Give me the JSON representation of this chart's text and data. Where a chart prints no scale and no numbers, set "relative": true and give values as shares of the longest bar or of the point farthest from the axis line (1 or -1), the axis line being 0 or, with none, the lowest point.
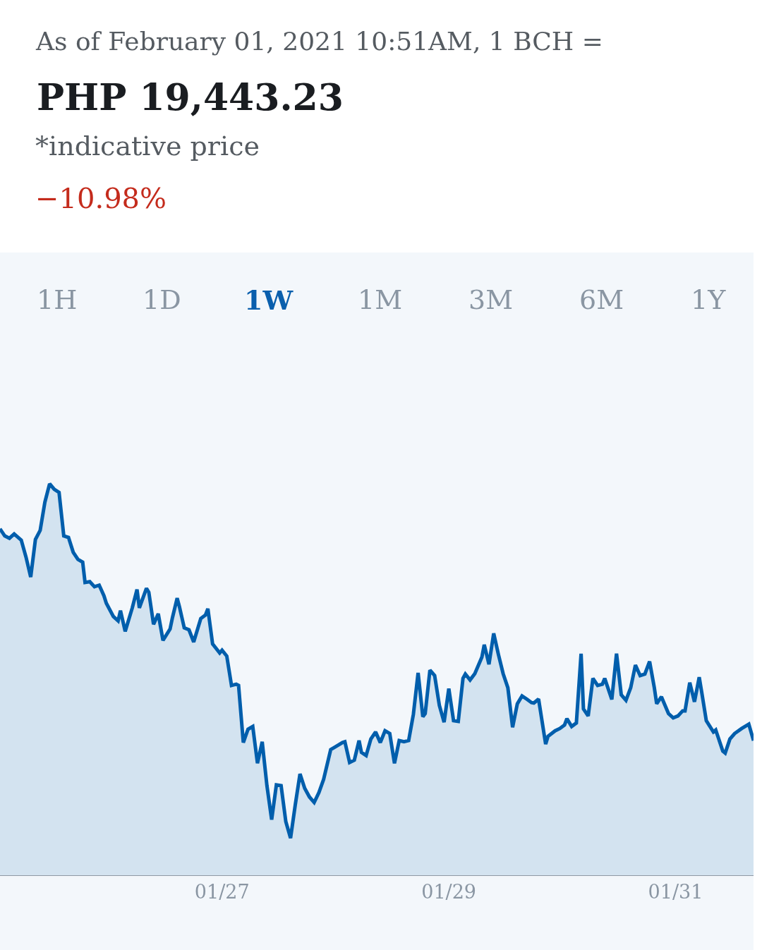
{
  "chart_data": {
    "type": "area",
    "subtitle": "As of February 01, 2021 10:51AM, 1 BCH =",
    "title": "PHP 19,443.23",
    "annotations": [
      "*indicative price",
      "−10.98%",
      "1H",
      "1D",
      "1W",
      "1M",
      "3M",
      "6M",
      "1Y"
    ],
    "relative": true,
    "color": "#005eac",
    "xlim": [
      "2021-01-25T01:00",
      "2021-01-31T16:30"
    ],
    "xticks": [
      {
        "value": "2021-01-27",
        "label": "01/27"
      },
      {
        "value": "2021-01-29",
        "label": "01/29"
      },
      {
        "value": "2021-01-31",
        "label": "01/31"
      }
    ],
    "x": [
      "2021-01-25T01:00",
      "2021-01-25T02:00",
      "2021-01-25T03:00",
      "2021-01-25T04:00",
      "2021-01-25T05:30",
      "2021-01-25T06:30",
      "2021-01-25T07:30",
      "2021-01-25T08:30",
      "2021-01-25T09:30",
      "2021-01-25T10:30",
      "2021-01-25T11:30",
      "2021-01-25T12:30",
      "2021-01-25T13:30",
      "2021-01-25T14:30",
      "2021-01-25T15:30",
      "2021-01-25T16:30",
      "2021-01-25T17:30",
      "2021-01-25T18:30",
      "2021-01-25T19:00",
      "2021-01-25T20:00",
      "2021-01-25T21:00",
      "2021-01-25T22:00",
      "2021-01-25T23:00",
      "2021-01-25T23:30",
      "2021-01-26T01:00",
      "2021-01-26T02:00",
      "2021-01-26T02:30",
      "2021-01-26T03:30",
      "2021-01-26T05:00",
      "2021-01-26T06:00",
      "2021-01-26T06:30",
      "2021-01-26T08:00",
      "2021-01-26T08:30",
      "2021-01-26T09:30",
      "2021-01-26T10:30",
      "2021-01-26T11:30",
      "2021-01-26T13:00",
      "2021-01-26T13:30",
      "2021-01-26T14:30",
      "2021-01-26T15:00",
      "2021-01-26T16:00",
      "2021-01-26T17:00",
      "2021-01-26T18:00",
      "2021-01-26T19:30",
      "2021-01-26T20:30",
      "2021-01-26T21:00",
      "2021-01-26T22:00",
      "2021-01-26T23:30",
      "2021-01-27T00:00",
      "2021-01-27T01:00",
      "2021-01-27T02:00",
      "2021-01-27T03:00",
      "2021-01-27T03:30",
      "2021-01-27T04:30",
      "2021-01-27T05:30",
      "2021-01-27T06:30",
      "2021-01-27T07:30",
      "2021-01-27T08:30",
      "2021-01-27T09:30",
      "2021-01-27T10:30",
      "2021-01-27T11:30",
      "2021-01-27T12:30",
      "2021-01-27T13:30",
      "2021-01-27T14:30",
      "2021-01-27T15:30",
      "2021-01-27T16:30",
      "2021-01-27T17:30",
      "2021-01-27T18:30",
      "2021-01-27T19:30",
      "2021-01-27T20:30",
      "2021-01-27T21:30",
      "2021-01-27T23:00",
      "2021-01-28T00:00",
      "2021-01-28T01:30",
      "2021-01-28T02:00",
      "2021-01-28T03:00",
      "2021-01-28T04:00",
      "2021-01-28T05:00",
      "2021-01-28T05:30",
      "2021-01-28T06:30",
      "2021-01-28T07:30",
      "2021-01-28T08:30",
      "2021-01-28T09:30",
      "2021-01-28T10:30",
      "2021-01-28T11:30",
      "2021-01-28T12:30",
      "2021-01-28T13:30",
      "2021-01-28T14:30",
      "2021-01-28T15:30",
      "2021-01-28T16:30",
      "2021-01-28T17:30",
      "2021-01-28T18:30",
      "2021-01-28T19:00",
      "2021-01-28T20:00",
      "2021-01-28T21:00",
      "2021-01-28T22:00",
      "2021-01-28T23:00",
      "2021-01-29T00:00",
      "2021-01-29T01:00",
      "2021-01-29T02:00",
      "2021-01-29T03:00",
      "2021-01-29T03:30",
      "2021-01-29T04:30",
      "2021-01-29T05:30",
      "2021-01-29T07:00",
      "2021-01-29T07:30",
      "2021-01-29T08:30",
      "2021-01-29T09:30",
      "2021-01-29T10:30",
      "2021-01-29T11:30",
      "2021-01-29T12:30",
      "2021-01-29T13:30",
      "2021-01-29T14:30",
      "2021-01-29T15:30",
      "2021-01-29T16:30",
      "2021-01-29T17:30",
      "2021-01-29T18:00",
      "2021-01-29T19:00",
      "2021-01-29T20:30",
      "2021-01-29T21:00",
      "2021-01-29T22:30",
      "2021-01-29T23:30",
      "2021-01-30T00:30",
      "2021-01-30T01:00",
      "2021-01-30T02:00",
      "2021-01-30T03:00",
      "2021-01-30T04:00",
      "2021-01-30T04:30",
      "2021-01-30T05:30",
      "2021-01-30T06:30",
      "2021-01-30T07:30",
      "2021-01-30T08:30",
      "2021-01-30T09:00",
      "2021-01-30T10:30",
      "2021-01-30T11:30",
      "2021-01-30T12:30",
      "2021-01-30T13:30",
      "2021-01-30T14:30",
      "2021-01-30T15:30",
      "2021-01-30T16:30",
      "2021-01-30T17:30",
      "2021-01-30T18:30",
      "2021-01-30T19:30",
      "2021-01-30T20:00",
      "2021-01-30T21:00",
      "2021-01-30T22:30",
      "2021-01-30T23:30",
      "2021-01-31T00:30",
      "2021-01-31T01:30",
      "2021-01-31T02:00",
      "2021-01-31T03:00",
      "2021-01-31T04:00",
      "2021-01-31T05:00",
      "2021-01-31T05:30",
      "2021-01-31T06:30",
      "2021-01-31T08:00",
      "2021-01-31T08:30",
      "2021-01-31T10:00",
      "2021-01-31T10:30",
      "2021-01-31T11:30",
      "2021-01-31T12:30",
      "2021-01-31T14:00",
      "2021-01-31T15:30",
      "2021-01-31T16:30"
    ],
    "values": [
      0.885,
      0.867,
      0.861,
      0.872,
      0.856,
      0.813,
      0.762,
      0.858,
      0.881,
      0.953,
      1.0,
      0.986,
      0.978,
      0.867,
      0.863,
      0.825,
      0.807,
      0.8,
      0.748,
      0.75,
      0.737,
      0.741,
      0.714,
      0.695,
      0.661,
      0.65,
      0.676,
      0.623,
      0.683,
      0.73,
      0.683,
      0.733,
      0.723,
      0.641,
      0.668,
      0.6,
      0.629,
      0.658,
      0.708,
      0.685,
      0.632,
      0.627,
      0.596,
      0.656,
      0.665,
      0.681,
      0.591,
      0.568,
      0.575,
      0.56,
      0.485,
      0.488,
      0.485,
      0.339,
      0.373,
      0.38,
      0.286,
      0.341,
      0.229,
      0.142,
      0.231,
      0.229,
      0.137,
      0.095,
      0.18,
      0.259,
      0.222,
      0.2,
      0.186,
      0.211,
      0.245,
      0.321,
      0.328,
      0.339,
      0.341,
      0.288,
      0.294,
      0.344,
      0.314,
      0.306,
      0.348,
      0.366,
      0.339,
      0.369,
      0.362,
      0.286,
      0.344,
      0.341,
      0.344,
      0.411,
      0.517,
      0.405,
      0.413,
      0.524,
      0.51,
      0.434,
      0.391,
      0.477,
      0.395,
      0.393,
      0.503,
      0.514,
      0.499,
      0.515,
      0.557,
      0.589,
      0.539,
      0.618,
      0.564,
      0.515,
      0.479,
      0.378,
      0.438,
      0.458,
      0.45,
      0.441,
      0.44,
      0.45,
      0.335,
      0.355,
      0.369,
      0.375,
      0.384,
      0.4,
      0.38,
      0.389,
      0.566,
      0.425,
      0.407,
      0.503,
      0.485,
      0.488,
      0.503,
      0.449,
      0.566,
      0.461,
      0.447,
      0.479,
      0.537,
      0.51,
      0.514,
      0.546,
      0.479,
      0.438,
      0.456,
      0.413,
      0.402,
      0.407,
      0.42,
      0.42,
      0.492,
      0.443,
      0.506,
      0.47,
      0.395,
      0.366,
      0.371,
      0.317,
      0.312,
      0.348,
      0.362,
      0.375,
      0.386,
      0.344
    ]
  }
}
